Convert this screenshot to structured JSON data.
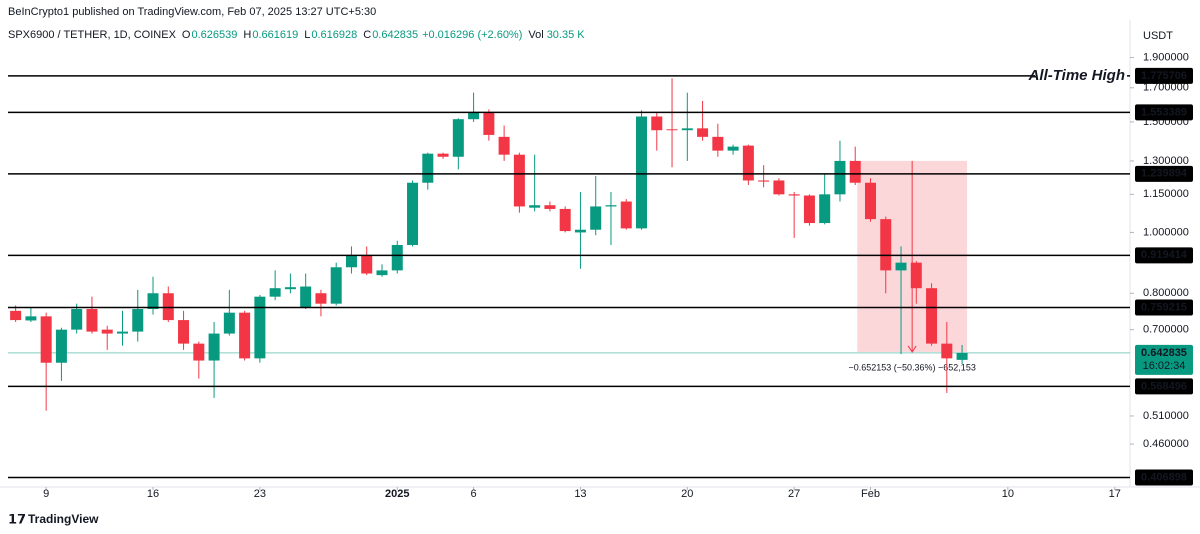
{
  "header": {
    "publisher": "BeInCrypto1 published on TradingView.com, Feb 07, 2025 13:27 UTC+5:30",
    "symbol": "SPX6900 / TETHER, 1D, COINEX",
    "ohlc": [
      {
        "key": "O",
        "value": "0.626539"
      },
      {
        "key": "H",
        "value": "0.661619"
      },
      {
        "key": "L",
        "value": "0.616928"
      },
      {
        "key": "C",
        "value": "0.642835"
      }
    ],
    "change": "+0.016296 (+2.60%)",
    "vol_key": "Vol",
    "vol": "30.35 K"
  },
  "chart_data": {
    "type": "candlestick",
    "currency": "USDT",
    "open": [
      0.75,
      0.724,
      0.735,
      0.62,
      0.7,
      0.755,
      0.7,
      0.69,
      0.695,
      0.755,
      0.8,
      0.725,
      0.665,
      0.625,
      0.69,
      0.745,
      0.63,
      0.79,
      0.812,
      0.76,
      0.8,
      0.77,
      0.88,
      0.92,
      0.855,
      0.87,
      0.955,
      1.2,
      1.335,
      1.32,
      1.515,
      1.555,
      1.42,
      1.33,
      1.095,
      1.105,
      1.09,
      1.0,
      1.01,
      1.1,
      1.12,
      1.015,
      1.53,
      1.46,
      1.455,
      1.465,
      1.42,
      1.35,
      1.375,
      1.21,
      1.21,
      1.15,
      1.145,
      1.035,
      1.15,
      1.3,
      1.2,
      1.05,
      0.87,
      0.895,
      0.815,
      0.665,
      0.626539
    ],
    "high": [
      0.765,
      0.76,
      0.745,
      0.705,
      0.77,
      0.79,
      0.71,
      0.75,
      0.81,
      0.85,
      0.82,
      0.75,
      0.67,
      0.72,
      0.81,
      0.75,
      0.795,
      0.87,
      0.86,
      0.86,
      0.81,
      0.895,
      0.95,
      0.95,
      0.89,
      0.97,
      1.21,
      1.34,
      1.34,
      1.52,
      1.67,
      1.57,
      1.48,
      1.34,
      1.33,
      1.12,
      1.1,
      1.16,
      1.23,
      1.16,
      1.13,
      1.565,
      1.55,
      1.76,
      1.67,
      1.62,
      1.49,
      1.38,
      1.38,
      1.28,
      1.22,
      1.16,
      1.15,
      1.24,
      1.4,
      1.37,
      1.22,
      1.06,
      0.95,
      0.9,
      0.83,
      0.72,
      0.661619
    ],
    "low": [
      0.72,
      0.72,
      0.52,
      0.58,
      0.69,
      0.69,
      0.65,
      0.66,
      0.67,
      0.74,
      0.72,
      0.65,
      0.585,
      0.545,
      0.685,
      0.625,
      0.62,
      0.78,
      0.8,
      0.755,
      0.735,
      0.765,
      0.86,
      0.855,
      0.85,
      0.86,
      0.95,
      1.17,
      1.31,
      1.26,
      1.5,
      1.4,
      1.3,
      1.075,
      1.08,
      1.08,
      1.0,
      0.875,
      0.99,
      0.955,
      1.01,
      1.01,
      1.35,
      1.27,
      1.3,
      1.4,
      1.32,
      1.33,
      1.19,
      1.18,
      1.145,
      0.98,
      1.025,
      1.03,
      1.12,
      1.19,
      1.04,
      0.8,
      0.64,
      0.77,
      0.66,
      0.555,
      0.616928
    ],
    "close": [
      0.725,
      0.735,
      0.62,
      0.7,
      0.755,
      0.695,
      0.69,
      0.695,
      0.755,
      0.8,
      0.725,
      0.665,
      0.625,
      0.69,
      0.745,
      0.63,
      0.79,
      0.815,
      0.818,
      0.82,
      0.77,
      0.88,
      0.92,
      0.86,
      0.87,
      0.955,
      1.2,
      1.335,
      1.32,
      1.515,
      1.555,
      1.43,
      1.33,
      1.1,
      1.105,
      1.09,
      1.005,
      1.01,
      1.1,
      1.105,
      1.015,
      1.53,
      1.455,
      1.455,
      1.465,
      1.42,
      1.35,
      1.37,
      1.21,
      1.205,
      1.15,
      1.145,
      1.035,
      1.15,
      1.3,
      1.2,
      1.05,
      0.87,
      0.895,
      0.815,
      0.665,
      0.63,
      0.642835
    ],
    "up_color": "#089981",
    "down_color": "#f23645",
    "log_scale": true,
    "ylim": [
      0.393,
      2.18
    ],
    "yticks": [
      {
        "value": 1.9,
        "label": "1.900000"
      },
      {
        "value": 1.7,
        "label": "1.700000"
      },
      {
        "value": 1.5,
        "label": "1.500000"
      },
      {
        "value": 1.3,
        "label": "1.300000"
      },
      {
        "value": 1.15,
        "label": "1.150000"
      },
      {
        "value": 1.0,
        "label": "1.000000"
      },
      {
        "value": 0.8,
        "label": "0.800000"
      },
      {
        "value": 0.7,
        "label": "0.700000"
      },
      {
        "value": 0.51,
        "label": "0.510000"
      },
      {
        "value": 0.46,
        "label": "0.460000"
      }
    ],
    "xlim": [
      -0.5,
      73
    ],
    "xticks": [
      {
        "value": 2,
        "label": "9"
      },
      {
        "value": 9,
        "label": "16"
      },
      {
        "value": 16,
        "label": "23"
      },
      {
        "value": 25,
        "label": "2025"
      },
      {
        "value": 30,
        "label": "6"
      },
      {
        "value": 37,
        "label": "13"
      },
      {
        "value": 44,
        "label": "20"
      },
      {
        "value": 51,
        "label": "27"
      },
      {
        "value": 56,
        "label": "Feb"
      },
      {
        "value": 65,
        "label": "10"
      },
      {
        "value": 72,
        "label": "17"
      }
    ],
    "levels": [
      1.775706,
      1.553389,
      1.239894,
      0.919414,
      0.759215,
      0.568496,
      0.406898
    ],
    "annotation": "All-Time High",
    "countdown": "16:02:34",
    "measure": {
      "top": 1.3,
      "bottom": 0.645,
      "label": "−0.652153 (−50.36%) −652,153"
    }
  },
  "footer": {
    "brand": "TradingView"
  }
}
